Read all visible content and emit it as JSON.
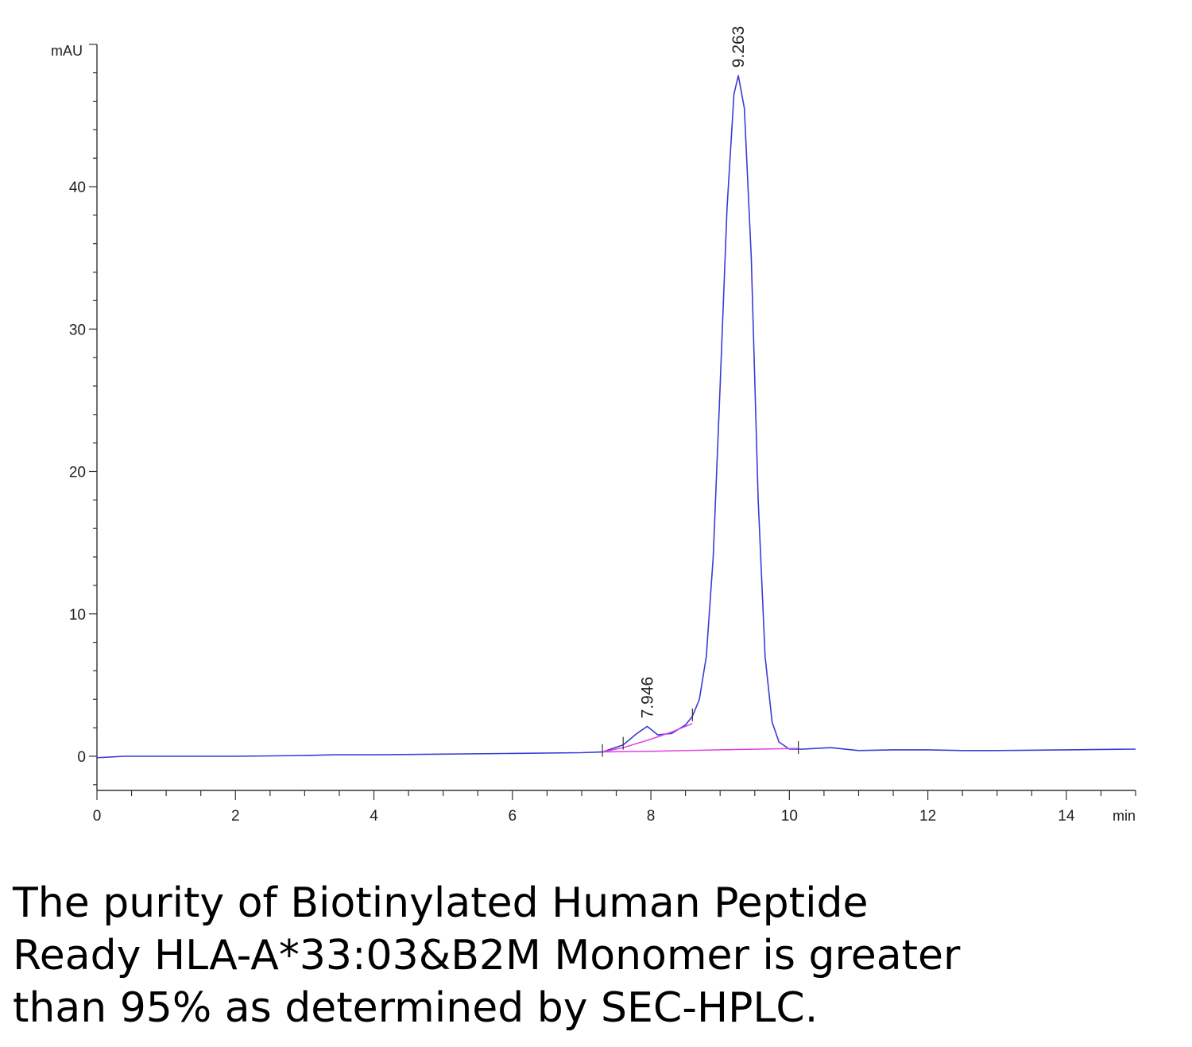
{
  "chart_data": {
    "type": "line",
    "ylabel": "mAU",
    "xlabel": "min",
    "xlim": [
      0,
      15
    ],
    "ylim": [
      -2.4,
      50
    ],
    "x_ticks": [
      0,
      2,
      4,
      6,
      8,
      10,
      12,
      14
    ],
    "y_ticks": [
      0,
      10,
      20,
      30,
      40
    ],
    "grid": false,
    "legend": "none",
    "series": [
      {
        "color": "#3b3bd6",
        "x": [
          0,
          0.4,
          1.0,
          2.0,
          3.0,
          3.4,
          4.0,
          5.0,
          6.0,
          7.0,
          7.3,
          7.6,
          7.8,
          7.946,
          8.1,
          8.3,
          8.5,
          8.6,
          8.7,
          8.8,
          8.9,
          9.0,
          9.1,
          9.2,
          9.263,
          9.35,
          9.45,
          9.55,
          9.65,
          9.75,
          9.85,
          10.0,
          10.2,
          10.6,
          11.0,
          11.5,
          12.0,
          12.5,
          13.0,
          14.0,
          15.0
        ],
        "y": [
          -0.1,
          0.0,
          0.0,
          0.0,
          0.05,
          0.1,
          0.1,
          0.15,
          0.2,
          0.25,
          0.3,
          0.8,
          1.6,
          2.1,
          1.5,
          1.6,
          2.2,
          2.8,
          4.0,
          7.0,
          14.0,
          26.0,
          38.5,
          46.5,
          47.8,
          45.5,
          35.0,
          18.0,
          7.0,
          2.4,
          1.0,
          0.5,
          0.5,
          0.6,
          0.4,
          0.45,
          0.45,
          0.4,
          0.4,
          0.45,
          0.5
        ]
      },
      {
        "color": "#e040e0",
        "x": [
          7.3,
          7.6,
          8.0,
          8.3,
          8.6
        ],
        "y": [
          0.3,
          0.6,
          1.2,
          1.7,
          2.3
        ]
      },
      {
        "color": "#e040e0",
        "x": [
          7.3,
          8.0,
          9.0,
          10.13
        ],
        "y": [
          0.3,
          0.35,
          0.45,
          0.55
        ]
      }
    ],
    "peak_labels": [
      {
        "x": 7.946,
        "y": 2.1,
        "label": "7.946"
      },
      {
        "x": 9.263,
        "y": 47.8,
        "label": "9.263"
      }
    ],
    "integration_marks_x": [
      7.3,
      7.6,
      8.6,
      10.13
    ]
  },
  "caption": {
    "line1": "The purity of Biotinylated Human Peptide",
    "line2": "Ready HLA-A*33:03&B2M Monomer is greater",
    "line3": "than 95% as determined by SEC-HPLC."
  }
}
